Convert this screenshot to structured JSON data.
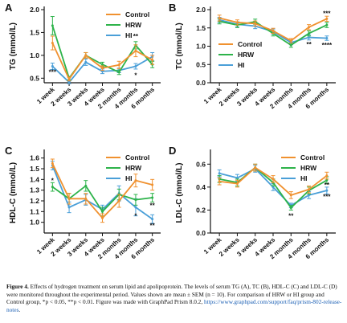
{
  "colors": {
    "control": "#f0912f",
    "hrw": "#2db34a",
    "hi": "#4a9fd8"
  },
  "chart_data": [
    {
      "panel": "A",
      "type": "line",
      "ylabel": "TG (mmol/L)",
      "ylim": [
        0.4,
        2.0
      ],
      "yticks": [
        "0.5",
        "1.0",
        "1.5",
        "2.0"
      ],
      "ytick_values": [
        0.5,
        1.0,
        1.5,
        2.0
      ],
      "categories": [
        "1 week",
        "2 weeks",
        "3 weeks",
        "4 weeks",
        "2 months",
        "4 months",
        "6 months"
      ],
      "legend": "top-right",
      "series": [
        {
          "name": "Control",
          "key": "control",
          "values": [
            1.27,
            0.48,
            1.0,
            0.72,
            0.79,
            1.1,
            0.9
          ],
          "errors": [
            0.15,
            0.04,
            0.06,
            0.05,
            0.08,
            0.13,
            0.1
          ]
        },
        {
          "name": "HRW",
          "key": "hrw",
          "values": [
            1.65,
            0.5,
            1.0,
            0.8,
            0.63,
            1.22,
            0.8
          ],
          "errors": [
            0.2,
            0.04,
            0.06,
            0.05,
            0.05,
            0.08,
            0.07
          ]
        },
        {
          "name": "HI",
          "key": "hi",
          "values": [
            0.76,
            0.41,
            0.85,
            0.65,
            0.67,
            0.76,
            0.97
          ],
          "errors": [
            0.07,
            0.03,
            0.07,
            0.05,
            0.05,
            0.06,
            0.09
          ]
        }
      ],
      "annotations": [
        {
          "text": "***",
          "category": 0,
          "y": 0.64
        },
        {
          "text": "**",
          "category": 5,
          "y": 1.42
        },
        {
          "text": "*",
          "category": 5,
          "y": 0.57
        }
      ]
    },
    {
      "panel": "B",
      "type": "line",
      "ylabel": "TC (mmol/L)",
      "ylim": [
        0.0,
        2.0
      ],
      "yticks": [
        "0.0",
        "0.5",
        "1.0",
        "1.5",
        "2.0"
      ],
      "ytick_values": [
        0.0,
        0.5,
        1.0,
        1.5,
        2.0
      ],
      "categories": [
        "1 week",
        "2 weeks",
        "3 weeks",
        "4 weeks",
        "2 months",
        "4 months",
        "6 months"
      ],
      "legend": "bottom-left",
      "series": [
        {
          "name": "Control",
          "key": "control",
          "values": [
            1.77,
            1.65,
            1.62,
            1.42,
            1.15,
            1.52,
            1.75
          ],
          "errors": [
            0.08,
            0.07,
            0.07,
            0.07,
            0.06,
            0.07,
            0.07
          ]
        },
        {
          "name": "HRW",
          "key": "hrw",
          "values": [
            1.68,
            1.58,
            1.67,
            1.35,
            1.03,
            1.35,
            1.58
          ],
          "errors": [
            0.07,
            0.07,
            0.07,
            0.07,
            0.06,
            0.07,
            0.07
          ]
        },
        {
          "name": "HI",
          "key": "hi",
          "values": [
            1.72,
            1.6,
            1.55,
            1.4,
            1.1,
            1.24,
            1.22
          ],
          "errors": [
            0.07,
            0.07,
            0.07,
            0.07,
            0.06,
            0.07,
            0.06
          ]
        }
      ],
      "annotations": [
        {
          "text": "***",
          "category": 6,
          "y": 1.9
        },
        {
          "text": "**",
          "category": 5,
          "y": 1.05
        },
        {
          "text": "****",
          "category": 6,
          "y": 1.03
        }
      ]
    },
    {
      "panel": "C",
      "type": "line",
      "ylabel": "HDL-C (mmol/L)",
      "ylim": [
        0.9,
        1.65
      ],
      "yticks": [
        "1.0",
        "1.1",
        "1.2",
        "1.3",
        "1.4",
        "1.5",
        "1.6"
      ],
      "ytick_values": [
        1.0,
        1.1,
        1.2,
        1.3,
        1.4,
        1.5,
        1.6
      ],
      "categories": [
        "1 week",
        "2 weeks",
        "3 weeks",
        "4 weeks",
        "2 months",
        "4 months",
        "6 months"
      ],
      "legend": "top-right",
      "series": [
        {
          "name": "Control",
          "key": "control",
          "values": [
            1.55,
            1.22,
            1.22,
            1.04,
            1.2,
            1.39,
            1.35
          ],
          "errors": [
            0.04,
            0.05,
            0.05,
            0.04,
            0.06,
            0.06,
            0.05
          ]
        },
        {
          "name": "HRW",
          "key": "hrw",
          "values": [
            1.33,
            1.22,
            1.34,
            1.1,
            1.26,
            1.21,
            1.23
          ],
          "errors": [
            0.04,
            0.05,
            0.05,
            0.04,
            0.05,
            0.05,
            0.04
          ]
        },
        {
          "name": "HI",
          "key": "hi",
          "values": [
            1.53,
            1.14,
            1.21,
            1.12,
            1.27,
            1.14,
            1.03
          ],
          "errors": [
            0.04,
            0.05,
            0.05,
            0.04,
            0.07,
            0.08,
            0.04
          ]
        }
      ],
      "annotations": [
        {
          "text": "*",
          "category": 0,
          "y": 1.39
        },
        {
          "text": "**",
          "category": 6,
          "y": 1.16
        },
        {
          "text": "*",
          "category": 5,
          "y": 1.06
        },
        {
          "text": "**",
          "category": 6,
          "y": 0.97
        }
      ]
    },
    {
      "panel": "D",
      "type": "line",
      "ylabel": "LDL-C (mmol/L)",
      "ylim": [
        0.0,
        0.7
      ],
      "yticks": [
        "0.0",
        "0.2",
        "0.4",
        "0.6"
      ],
      "ytick_values": [
        0.0,
        0.2,
        0.4,
        0.6
      ],
      "categories": [
        "1 week",
        "2 weeks",
        "3 weeks",
        "4 weeks",
        "2 months",
        "4 months",
        "6 months"
      ],
      "legend": "top-right",
      "series": [
        {
          "name": "Control",
          "key": "control",
          "values": [
            0.45,
            0.43,
            0.57,
            0.47,
            0.33,
            0.38,
            0.5
          ],
          "errors": [
            0.03,
            0.03,
            0.03,
            0.03,
            0.03,
            0.03,
            0.03
          ]
        },
        {
          "name": "HRW",
          "key": "hrw",
          "values": [
            0.47,
            0.44,
            0.57,
            0.44,
            0.22,
            0.37,
            0.46
          ],
          "errors": [
            0.03,
            0.03,
            0.03,
            0.03,
            0.02,
            0.03,
            0.03
          ]
        },
        {
          "name": "HI",
          "key": "hi",
          "values": [
            0.52,
            0.48,
            0.56,
            0.4,
            0.24,
            0.33,
            0.37
          ],
          "errors": [
            0.03,
            0.03,
            0.03,
            0.03,
            0.02,
            0.03,
            0.03
          ]
        }
      ],
      "annotations": [
        {
          "text": "**",
          "category": 6,
          "y": 0.42
        },
        {
          "text": "***",
          "category": 6,
          "y": 0.32
        },
        {
          "text": "**",
          "category": 4,
          "y": 0.15
        }
      ]
    }
  ],
  "caption": {
    "label": "Figure 4.",
    "text": "Effects of hydrogen treatment on serum lipid and apolipoprotein. The levels of serum TG (A), TC (B), HDL-C (C) and LDL-C (D) were monitored throughout the experimental period. Values shown are mean ± SEM (n = 10). For comparison of HRW or HI group and Control group, *p < 0.05, **p < 0.01. Figure was made with GraphPad Prism 8.0.2,",
    "link": "https://www.graphpad.com/support/faq/prism-802-release-notes",
    "end": "."
  }
}
